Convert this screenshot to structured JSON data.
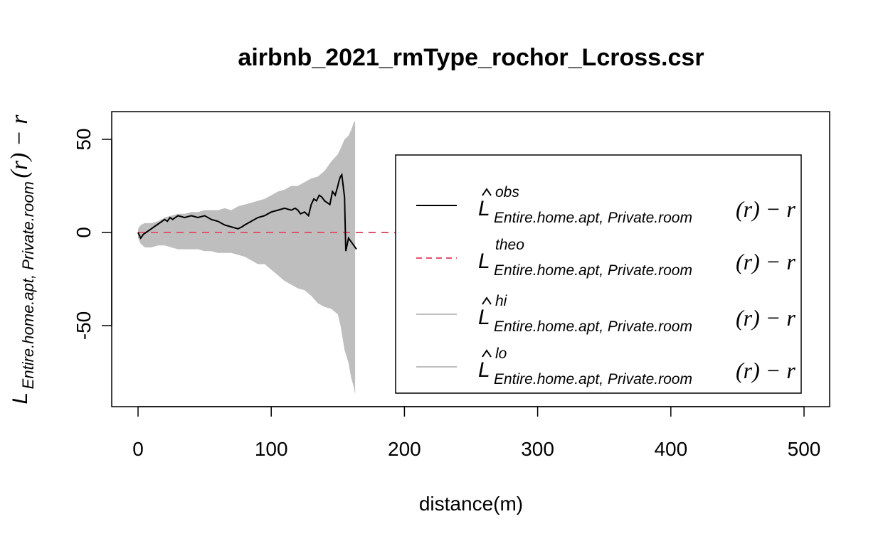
{
  "chart_data": {
    "type": "line",
    "title": "airbnb_2021_rmType_rochor_Lcross.csr",
    "xlabel": "distance(m)",
    "ylabel": {
      "main": "L",
      "sub": "Entire.home.apt, Private.room",
      "tail": "(r) − r"
    },
    "xlim": [
      0,
      500
    ],
    "ylim": [
      -85,
      60
    ],
    "x_ticks": [
      0,
      100,
      200,
      300,
      400,
      500
    ],
    "x_tick_labels": [
      "0",
      "100",
      "200",
      "300",
      "400",
      "500"
    ],
    "y_ticks": [
      -50,
      0,
      50
    ],
    "y_tick_labels": [
      "-50",
      "0",
      "50"
    ],
    "grid": false,
    "legend_position": "right",
    "colors": {
      "obs": "#000000",
      "theo": "#DF536B",
      "envelope": "#BEBEBE"
    },
    "series": [
      {
        "key": "obs",
        "legend_main": "L",
        "legend_hat": true,
        "legend_sup": "obs",
        "legend_sub": "Entire.home.apt, Private.room",
        "legend_tail": "(r) − r",
        "style": "solid",
        "x": [
          0,
          2,
          4,
          6,
          8,
          10,
          12,
          14,
          16,
          18,
          20,
          22,
          24,
          26,
          28,
          30,
          35,
          40,
          45,
          50,
          55,
          60,
          65,
          70,
          75,
          78,
          80,
          85,
          90,
          95,
          100,
          105,
          110,
          115,
          118,
          120,
          122,
          125,
          128,
          130,
          132,
          134,
          136,
          138,
          140,
          142,
          144,
          146,
          148,
          150,
          151,
          152,
          153,
          155,
          156,
          158,
          160,
          162,
          164
        ],
        "y": [
          0,
          -3,
          -1,
          0,
          1,
          2,
          3,
          4,
          5,
          6,
          7,
          6,
          8,
          7,
          8,
          9,
          8,
          9,
          8,
          9,
          7,
          6,
          4,
          3,
          2,
          3,
          4,
          6,
          8,
          9,
          11,
          12,
          13,
          12,
          13,
          12,
          10,
          11,
          9,
          15,
          18,
          17,
          20,
          19,
          17,
          16,
          15,
          22,
          20,
          25,
          28,
          30,
          31,
          19,
          -10,
          -3,
          -5,
          -7,
          -9
        ]
      },
      {
        "key": "theo",
        "legend_main": "L",
        "legend_hat": false,
        "legend_sup": "theo",
        "legend_sub": "Entire.home.apt, Private.room",
        "legend_tail": "(r) − r",
        "style": "dashed",
        "x": [
          0,
          469
        ],
        "y": [
          0,
          0
        ]
      },
      {
        "key": "hi",
        "legend_main": "L",
        "legend_hat": true,
        "legend_sup": "hi",
        "legend_sub": "Entire.home.apt, Private.room",
        "legend_tail": "(r) − r",
        "style": "band-upper",
        "x": [
          0,
          2,
          5,
          10,
          15,
          20,
          25,
          30,
          35,
          40,
          45,
          50,
          55,
          60,
          65,
          70,
          75,
          80,
          85,
          90,
          95,
          100,
          105,
          110,
          115,
          120,
          125,
          130,
          135,
          140,
          145,
          150,
          152,
          155,
          158,
          160,
          162,
          163
        ],
        "y": [
          2,
          4,
          5,
          5,
          6,
          8,
          9,
          10,
          10,
          11,
          11,
          12,
          12,
          12,
          13,
          12,
          14,
          15,
          16,
          17,
          18,
          20,
          22,
          23,
          25,
          25,
          27,
          29,
          30,
          33,
          38,
          42,
          45,
          50,
          52,
          55,
          59,
          60
        ]
      },
      {
        "key": "lo",
        "legend_main": "L",
        "legend_hat": true,
        "legend_sup": "lo",
        "legend_sub": "Entire.home.apt, Private.room",
        "legend_tail": "(r) − r",
        "style": "band-lower",
        "x": [
          0,
          2,
          5,
          10,
          15,
          20,
          25,
          30,
          35,
          40,
          45,
          50,
          55,
          60,
          65,
          70,
          75,
          80,
          85,
          90,
          95,
          100,
          105,
          110,
          115,
          120,
          125,
          130,
          135,
          140,
          145,
          150,
          152,
          155,
          158,
          160,
          162,
          163
        ],
        "y": [
          -3,
          -6,
          -8,
          -8,
          -7,
          -7,
          -8,
          -9,
          -9,
          -9,
          -9,
          -10,
          -10,
          -11,
          -11,
          -11,
          -12,
          -13,
          -15,
          -17,
          -17,
          -20,
          -23,
          -26,
          -28,
          -30,
          -31,
          -34,
          -38,
          -40,
          -41,
          -44,
          -50,
          -63,
          -70,
          -78,
          -83,
          -87
        ]
      }
    ]
  }
}
